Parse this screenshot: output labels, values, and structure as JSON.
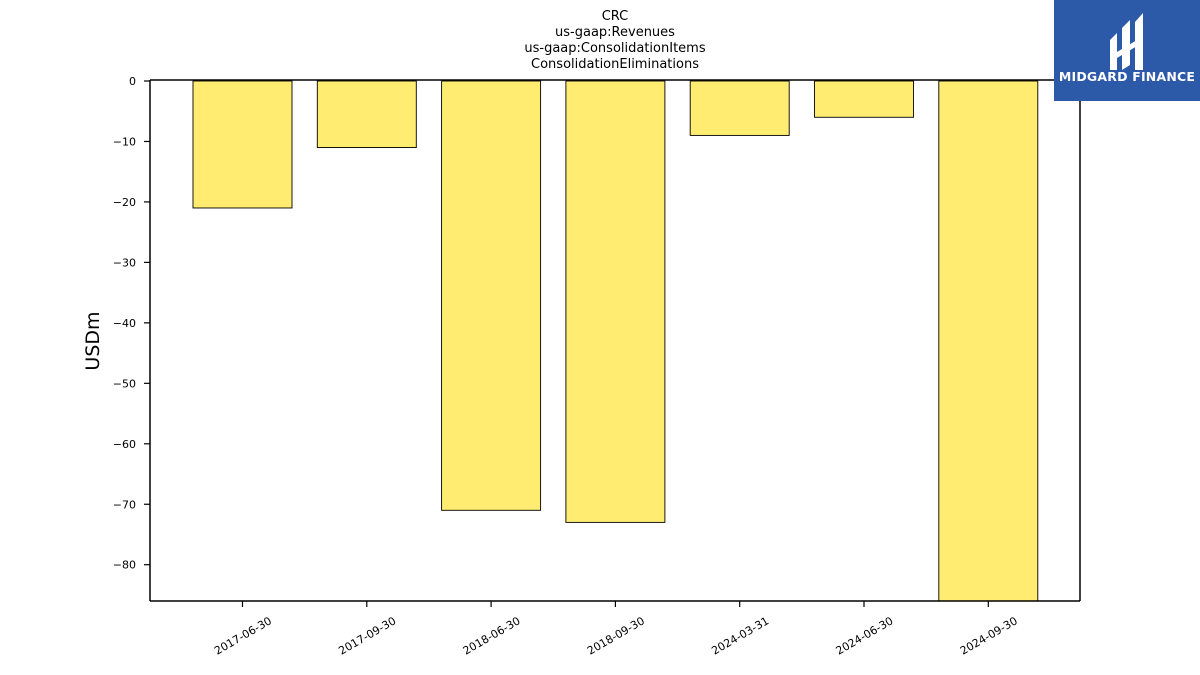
{
  "chart_data": {
    "type": "bar",
    "title_lines": [
      "CRC",
      "us-gaap:Revenues",
      "us-gaap:ConsolidationItems",
      "ConsolidationEliminations"
    ],
    "categories": [
      "2017-06-30",
      "2017-09-30",
      "2018-06-30",
      "2018-09-30",
      "2024-03-31",
      "2024-06-30",
      "2024-09-30"
    ],
    "values": [
      -21,
      -11,
      -71,
      -73,
      -9,
      -6,
      -86
    ],
    "xlabel": "",
    "ylabel": "USDm",
    "ylim": [
      -86,
      0
    ],
    "yticks": [
      0,
      -10,
      -20,
      -30,
      -40,
      -50,
      -60,
      -70,
      -80
    ],
    "ytick_labels": [
      "0",
      "−10",
      "−20",
      "−30",
      "−40",
      "−50",
      "−60",
      "−70",
      "−80"
    ],
    "bar_color": "#ffec70",
    "grid": false,
    "legend": "none"
  },
  "logo": {
    "text": "MIDGARD FINANCE",
    "background": "#2c5aa8"
  }
}
